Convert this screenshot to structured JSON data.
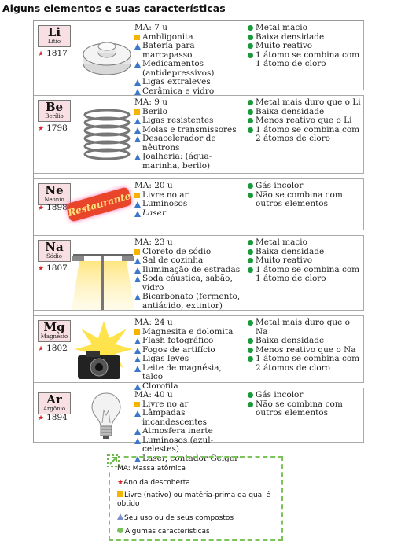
{
  "title": "Alguns elementos e suas características",
  "elements": [
    {
      "symbol": "Li",
      "name": "Lítio",
      "year": "1817",
      "ma": "MA: 7 u",
      "source": "Ambligonita",
      "uses": [
        "Bateria para marcapasso",
        "Medicamentos (antidepressivos)",
        "Ligas extraleves",
        "Cerâmica e vidro"
      ],
      "traits": [
        "Metal macio",
        "Baixa densidade",
        "Muito reativo",
        "1 átomo se combina com 1 átomo de cloro"
      ]
    },
    {
      "symbol": "Be",
      "name": "Berílio",
      "year": "1798",
      "ma": "MA: 9 u",
      "source": "Berilo",
      "uses": [
        "Ligas resistentes",
        "Molas e transmissores",
        "Desacelerador de nêutrons",
        "Joalheria: (água-marinha, berilo)"
      ],
      "traits": [
        "Metal mais duro que o Li",
        "Baixa densidade",
        "Menos reativo que o Li",
        "1 átomo se combina com 2 átomos de cloro"
      ]
    },
    {
      "symbol": "Ne",
      "name": "Neônio",
      "year": "1898",
      "ma": "MA: 20 u",
      "source": "Livre no ar",
      "uses": [
        "Luminosos",
        "Laser"
      ],
      "traits": [
        "Gás incolor",
        "Não se combina com outros elementos"
      ],
      "sign_text": "Restaurante"
    },
    {
      "symbol": "Na",
      "name": "Sódio",
      "year": "1807",
      "ma": "MA: 23 u",
      "source": "Cloreto de sódio",
      "uses": [
        "Sal de cozinha",
        "Iluminação de estradas",
        "Soda cáustica, sabão, vidro",
        "Bicarbonato (fermento, antiácido, extintor)"
      ],
      "traits": [
        "Metal macio",
        "Baixa densidade",
        "Muito reativo",
        "1 átomo se combina com 1 átomo de cloro"
      ]
    },
    {
      "symbol": "Mg",
      "name": "Magnésio",
      "year": "1802",
      "ma": "MA: 24 u",
      "source": "Magnesita e dolomita",
      "uses": [
        "Flash fotográfico",
        "Fogos de artifício",
        "Ligas leves",
        "Leite de magnésia, talco",
        "Clorofila"
      ],
      "traits": [
        "Metal mais duro que o Na",
        "Baixa densidade",
        "Menos reativo que o Na",
        "1 átomo se combina com 2 átomos de cloro"
      ]
    },
    {
      "symbol": "Ar",
      "name": "Argônio",
      "year": "1894",
      "ma": "MA: 40 u",
      "source": "Livre no ar",
      "uses": [
        "Lâmpadas incandescentes",
        "Atmosfera inerte",
        "Luminosos (azul-celestes)",
        "Laser, contador Geiger"
      ],
      "traits": [
        "Gás incolor",
        "Não se combina com outros elementos"
      ]
    }
  ],
  "legend": {
    "ma": "MA: Massa atômica",
    "year": "Ano da descoberta",
    "source": "Livre (nativo) ou matéria-prima da qual é obtido",
    "uses": "Seu uso ou de seus compostos",
    "traits": "Algumas características"
  },
  "colors": {
    "source": "#f4b400",
    "uses": "#3c78c8",
    "traits": "#1b9a3b",
    "year": "#d22222",
    "box": "#f7dfe3"
  }
}
